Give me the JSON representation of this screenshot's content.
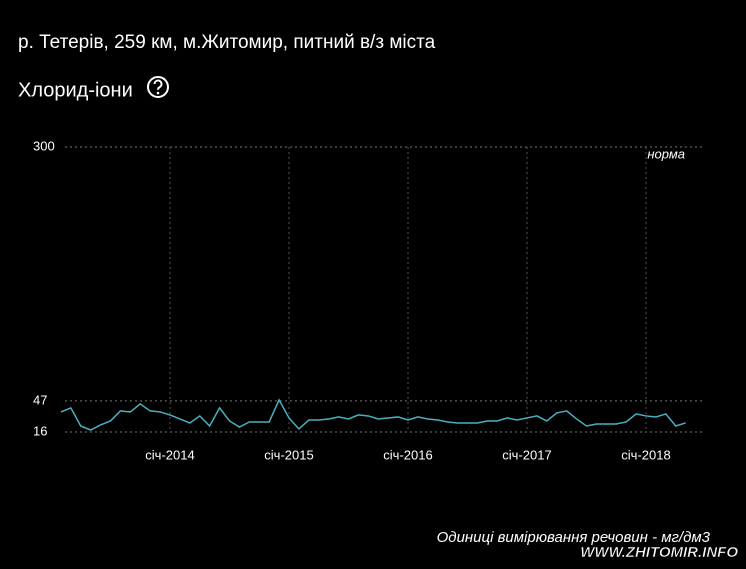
{
  "chart_data": {
    "type": "line",
    "title": "р. Тетерів, 259 км, м.Житомир, питний в/з міста",
    "subtitle": "Хлорид-іони",
    "annotation": "норма",
    "units_note": "Одиниці вимірювання речовин - мг/дм3",
    "watermark": "WWW.ZHITOMIR.INFO",
    "x": [
      "2013-02",
      "2013-03",
      "2013-04",
      "2013-05",
      "2013-06",
      "2013-07",
      "2013-08",
      "2013-09",
      "2013-10",
      "2013-11",
      "2013-12",
      "2014-01",
      "2014-02",
      "2014-03",
      "2014-04",
      "2014-05",
      "2014-06",
      "2014-07",
      "2014-08",
      "2014-09",
      "2014-10",
      "2014-11",
      "2014-12",
      "2015-01",
      "2015-02",
      "2015-03",
      "2015-04",
      "2015-05",
      "2015-06",
      "2015-07",
      "2015-08",
      "2015-09",
      "2015-10",
      "2015-11",
      "2015-12",
      "2016-01",
      "2016-02",
      "2016-03",
      "2016-04",
      "2016-05",
      "2016-06",
      "2016-07",
      "2016-08",
      "2016-09",
      "2016-10",
      "2016-11",
      "2016-12",
      "2017-01",
      "2017-02",
      "2017-03",
      "2017-04",
      "2017-05",
      "2017-06",
      "2017-07",
      "2017-08",
      "2017-09",
      "2017-10",
      "2017-11",
      "2017-12",
      "2018-01",
      "2018-02",
      "2018-03",
      "2018-04",
      "2018-05"
    ],
    "series": [
      {
        "name": "Хлорид-іони",
        "color": "#4ab0c1",
        "values": [
          36,
          40,
          22,
          18,
          23,
          27,
          37,
          36,
          44,
          37,
          36,
          33,
          29,
          25,
          32,
          22,
          40,
          27,
          21,
          26,
          26,
          26,
          48,
          30,
          19,
          28,
          28,
          29,
          31,
          29,
          33,
          32,
          29,
          30,
          31,
          28,
          31,
          29,
          28,
          26,
          25,
          25,
          25,
          27,
          27,
          30,
          28,
          30,
          32,
          27,
          35,
          37,
          29,
          22,
          24,
          24,
          24,
          26,
          34,
          32,
          31,
          34,
          22,
          25
        ]
      }
    ],
    "ylim": [
      16,
      300
    ],
    "yticks": [
      16,
      47,
      300
    ],
    "xticks": [
      {
        "value": "2014-01",
        "label": "січ-2014"
      },
      {
        "value": "2015-01",
        "label": "січ-2015"
      },
      {
        "value": "2016-01",
        "label": "січ-2016"
      },
      {
        "value": "2017-01",
        "label": "січ-2017"
      },
      {
        "value": "2018-01",
        "label": "січ-2018"
      }
    ],
    "grid": true
  }
}
